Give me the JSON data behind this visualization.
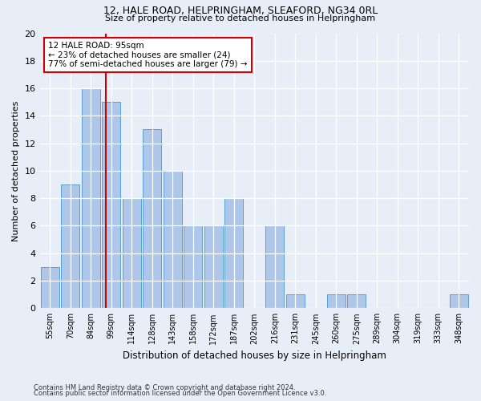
{
  "title1": "12, HALE ROAD, HELPRINGHAM, SLEAFORD, NG34 0RL",
  "title2": "Size of property relative to detached houses in Helpringham",
  "xlabel": "Distribution of detached houses by size in Helpringham",
  "ylabel": "Number of detached properties",
  "categories": [
    "55sqm",
    "70sqm",
    "84sqm",
    "99sqm",
    "114sqm",
    "128sqm",
    "143sqm",
    "158sqm",
    "172sqm",
    "187sqm",
    "202sqm",
    "216sqm",
    "231sqm",
    "245sqm",
    "260sqm",
    "275sqm",
    "289sqm",
    "304sqm",
    "319sqm",
    "333sqm",
    "348sqm"
  ],
  "values": [
    3,
    9,
    16,
    15,
    8,
    13,
    10,
    6,
    6,
    8,
    0,
    6,
    1,
    0,
    1,
    1,
    0,
    0,
    0,
    0,
    1
  ],
  "bar_color": "#aec6e8",
  "bar_edgecolor": "#5a9fd4",
  "annotation_title": "12 HALE ROAD: 95sqm",
  "annotation_line1": "← 23% of detached houses are smaller (24)",
  "annotation_line2": "77% of semi-detached houses are larger (79) →",
  "annotation_box_facecolor": "#ffffff",
  "annotation_box_edgecolor": "#cc0000",
  "footnote1": "Contains HM Land Registry data © Crown copyright and database right 2024.",
  "footnote2": "Contains public sector information licensed under the Open Government Licence v3.0.",
  "background_color": "#e8eef7",
  "ylim": [
    0,
    20
  ],
  "yticks": [
    0,
    2,
    4,
    6,
    8,
    10,
    12,
    14,
    16,
    18,
    20
  ],
  "vline_pos": 2.733
}
